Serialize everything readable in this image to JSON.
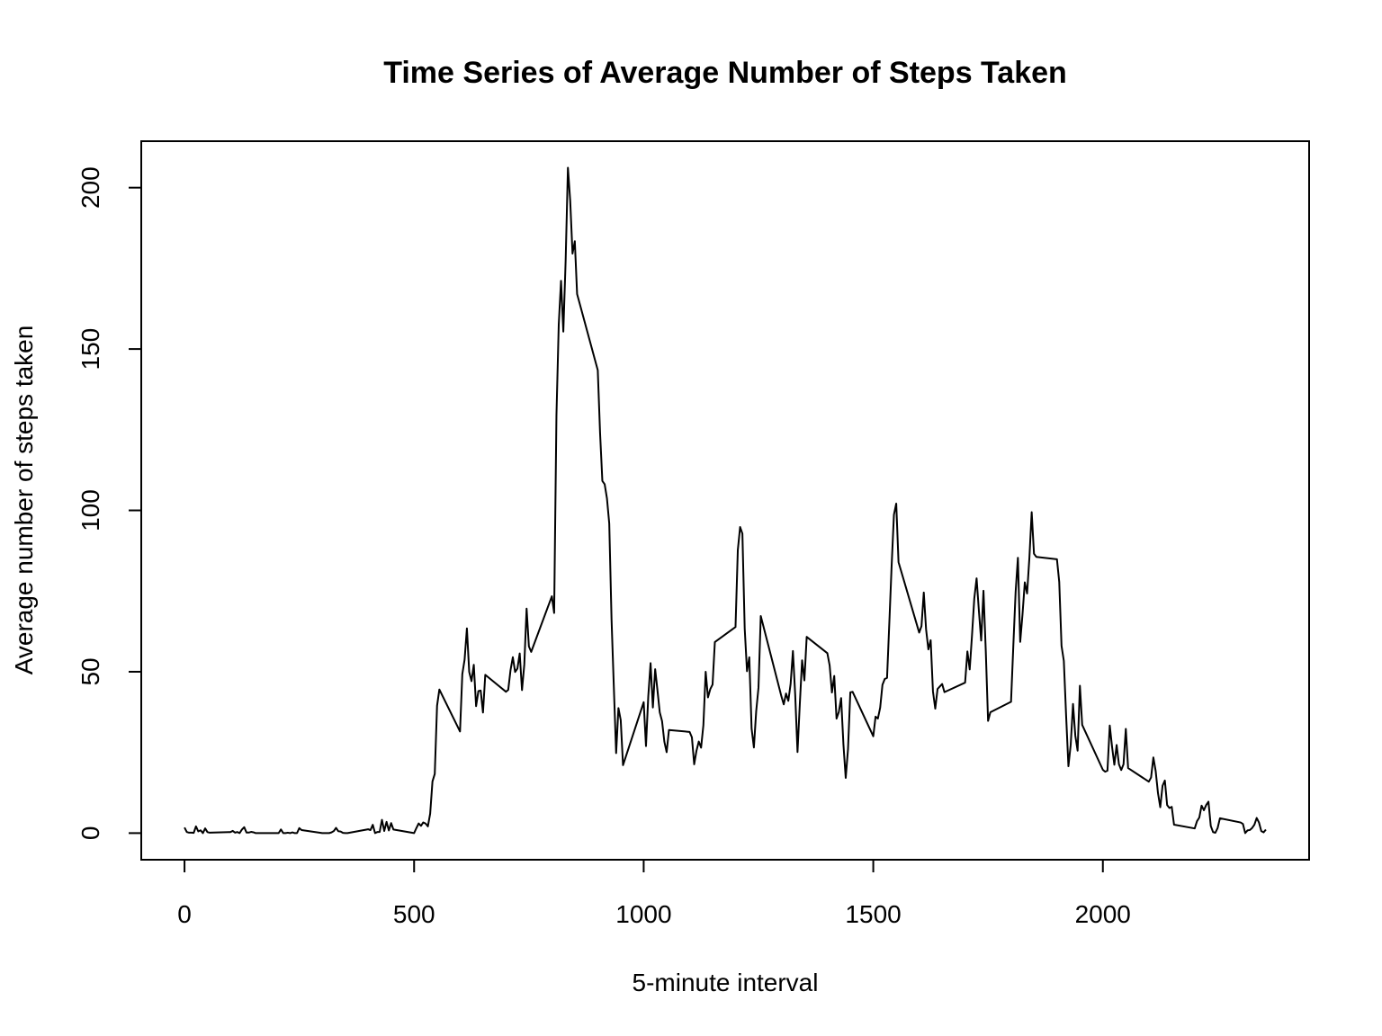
{
  "chart_data": {
    "type": "line",
    "title": "Time Series of Average Number of Steps Taken",
    "x_label": "5-minute interval",
    "y_label": "Average number of steps taken",
    "x": [
      0,
      5,
      10,
      15,
      20,
      25,
      30,
      35,
      40,
      45,
      50,
      55,
      100,
      105,
      110,
      115,
      120,
      125,
      130,
      135,
      140,
      145,
      150,
      155,
      200,
      205,
      210,
      215,
      220,
      225,
      230,
      235,
      240,
      245,
      250,
      255,
      300,
      305,
      310,
      315,
      320,
      325,
      330,
      335,
      340,
      345,
      350,
      355,
      400,
      405,
      410,
      415,
      420,
      425,
      430,
      435,
      440,
      445,
      450,
      455,
      500,
      505,
      510,
      515,
      520,
      525,
      530,
      535,
      540,
      545,
      550,
      555,
      600,
      605,
      610,
      615,
      620,
      625,
      630,
      635,
      640,
      645,
      650,
      655,
      700,
      705,
      710,
      715,
      720,
      725,
      730,
      735,
      740,
      745,
      750,
      755,
      800,
      805,
      810,
      815,
      820,
      825,
      830,
      835,
      840,
      845,
      850,
      855,
      900,
      905,
      910,
      915,
      920,
      925,
      930,
      935,
      940,
      945,
      950,
      955,
      1000,
      1005,
      1010,
      1015,
      1020,
      1025,
      1030,
      1035,
      1040,
      1045,
      1050,
      1055,
      1100,
      1105,
      1110,
      1115,
      1120,
      1125,
      1130,
      1135,
      1140,
      1145,
      1150,
      1155,
      1200,
      1205,
      1210,
      1215,
      1220,
      1225,
      1230,
      1235,
      1240,
      1245,
      1250,
      1255,
      1300,
      1305,
      1310,
      1315,
      1320,
      1325,
      1330,
      1335,
      1340,
      1345,
      1350,
      1355,
      1400,
      1405,
      1410,
      1415,
      1420,
      1425,
      1430,
      1435,
      1440,
      1445,
      1450,
      1455,
      1500,
      1505,
      1510,
      1515,
      1520,
      1525,
      1530,
      1535,
      1540,
      1545,
      1550,
      1555,
      1600,
      1605,
      1610,
      1615,
      1620,
      1625,
      1630,
      1635,
      1640,
      1645,
      1650,
      1655,
      1700,
      1705,
      1710,
      1715,
      1720,
      1725,
      1730,
      1735,
      1740,
      1745,
      1750,
      1755,
      1800,
      1805,
      1810,
      1815,
      1820,
      1825,
      1830,
      1835,
      1840,
      1845,
      1850,
      1855,
      1900,
      1905,
      1910,
      1915,
      1920,
      1925,
      1930,
      1935,
      1940,
      1945,
      1950,
      1955,
      2000,
      2005,
      2010,
      2015,
      2020,
      2025,
      2030,
      2035,
      2040,
      2045,
      2050,
      2055,
      2100,
      2105,
      2110,
      2115,
      2120,
      2125,
      2130,
      2135,
      2140,
      2145,
      2150,
      2155,
      2200,
      2205,
      2210,
      2215,
      2220,
      2225,
      2230,
      2235,
      2240,
      2245,
      2250,
      2255,
      2300,
      2305,
      2310,
      2315,
      2320,
      2325,
      2330,
      2335,
      2340,
      2345,
      2350,
      2355
    ],
    "series": [
      {
        "color": "#000000",
        "values": [
          1.72,
          0.34,
          0.13,
          0.15,
          0.08,
          2.09,
          0.53,
          0.87,
          0,
          1.47,
          0.3,
          0.13,
          0.32,
          0.68,
          0.15,
          0.34,
          0,
          1.11,
          1.83,
          0.17,
          0.17,
          0.38,
          0.26,
          0,
          0,
          0,
          1.13,
          0,
          0,
          0.13,
          0,
          0.23,
          0,
          0,
          1.55,
          0.94,
          0,
          0,
          0,
          0,
          0.21,
          0.62,
          1.62,
          0.58,
          0.49,
          0.08,
          0,
          0,
          1.19,
          0.94,
          2.57,
          0,
          0.34,
          0.36,
          4.11,
          0.66,
          3.49,
          0.83,
          3.11,
          1.11,
          0,
          1.57,
          3,
          2.25,
          3.32,
          2.96,
          2.09,
          6.06,
          16.02,
          18.34,
          39.45,
          44.49,
          31.49,
          49.26,
          53.77,
          63.45,
          49.96,
          47.08,
          52.15,
          39.34,
          44.02,
          44.17,
          37.36,
          49.04,
          43.81,
          44.38,
          50.51,
          54.51,
          49.92,
          50.98,
          55.68,
          44.32,
          52.26,
          69.55,
          57.85,
          56.15,
          73.38,
          68.21,
          129.43,
          157.53,
          171.15,
          155.4,
          177.3,
          206.17,
          195.92,
          179.57,
          183.4,
          167.02,
          143.45,
          124.04,
          109.11,
          108.11,
          103.72,
          95.96,
          66.21,
          45.23,
          24.79,
          38.75,
          34.98,
          21.06,
          40.57,
          26.98,
          42.42,
          52.66,
          38.92,
          50.79,
          44.28,
          37.42,
          34.7,
          28.34,
          25.09,
          31.94,
          31.36,
          29.68,
          21.32,
          25.55,
          28.38,
          26.47,
          33.43,
          49.98,
          42.04,
          44.6,
          46.04,
          59.19,
          63.87,
          87.7,
          94.85,
          92.77,
          63.4,
          50.17,
          54.47,
          32.42,
          26.53,
          37.74,
          45.06,
          67.28,
          42.34,
          39.89,
          43.26,
          40.98,
          46.25,
          56.43,
          42.75,
          25.13,
          39.96,
          53.55,
          47.32,
          60.81,
          55.75,
          51.96,
          43.58,
          48.7,
          35.47,
          37.55,
          41.85,
          27.51,
          17.11,
          26.08,
          43.62,
          43.77,
          30.02,
          36.08,
          35.49,
          38.85,
          45.96,
          47.75,
          48.13,
          65.32,
          82.91,
          98.66,
          102.11,
          83.96,
          62.13,
          64.13,
          74.55,
          63.17,
          56.91,
          59.77,
          43.87,
          38.57,
          44.66,
          45.45,
          46.21,
          43.68,
          46.62,
          56.3,
          50.72,
          61.23,
          72.72,
          78.94,
          68.94,
          59.66,
          75.09,
          56.51,
          34.77,
          37.45,
          40.68,
          58.02,
          74.7,
          85.32,
          59.26,
          67.77,
          77.7,
          74.25,
          85.34,
          99.45,
          86.58,
          85.6,
          84.87,
          77.83,
          58.04,
          53.36,
          36.32,
          20.72,
          27.4,
          40.02,
          30.21,
          25.55,
          45.66,
          33.53,
          19.62,
          19.02,
          19.34,
          33.34,
          26.81,
          21.17,
          27.3,
          21.34,
          19.55,
          21.32,
          32.3,
          20.15,
          15.94,
          17.23,
          23.45,
          19.25,
          12.45,
          8.02,
          14.66,
          16.3,
          8.68,
          7.79,
          8.13,
          2.62,
          1.45,
          3.68,
          4.81,
          8.51,
          7.08,
          8.7,
          9.75,
          2.21,
          0.32,
          0.11,
          1.6,
          4.6,
          3.3,
          2.85,
          0,
          0.83,
          0.96,
          1.58,
          2.6,
          4.7,
          3.3,
          0.64,
          0.23,
          1.08
        ]
      }
    ],
    "xlim": [
      -94.2,
      2449.2
    ],
    "ylim": [
      -8.25,
      214.4
    ],
    "xticks": [
      0,
      500,
      1000,
      1500,
      2000
    ],
    "yticks": [
      0,
      50,
      100,
      150,
      200
    ]
  }
}
